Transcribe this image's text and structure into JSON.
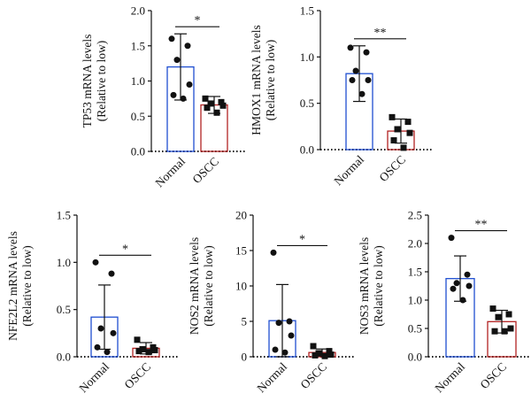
{
  "chart_data": [
    {
      "type": "bar",
      "ylabel_line1": "TP53 mRNA levels",
      "ylabel_line2": "(Relative to low)",
      "categories": [
        "Normal",
        "OSCC"
      ],
      "ylim": [
        0,
        2.0
      ],
      "yticks": [
        "0.0",
        "0.5",
        "1.0",
        "1.5",
        "2.0"
      ],
      "tick_values": [
        0,
        0.5,
        1.0,
        1.5,
        2.0
      ],
      "means": [
        1.2,
        0.66
      ],
      "sd": [
        0.47,
        0.12
      ],
      "points": [
        [
          1.6,
          1.5,
          1.3,
          0.95,
          0.8,
          0.75
        ],
        [
          0.75,
          0.7,
          0.68,
          0.65,
          0.62,
          0.55
        ]
      ],
      "significance": "*",
      "colors": [
        "#1f4fd1",
        "#b22222"
      ]
    },
    {
      "type": "bar",
      "ylabel_line1": "HMOX1 mRNA levels",
      "ylabel_line2": "(Relative to low)",
      "categories": [
        "Normal",
        "OSCC"
      ],
      "ylim": [
        0,
        1.5
      ],
      "yticks": [
        "0.0",
        "0.5",
        "1.0",
        "1.5"
      ],
      "tick_values": [
        0,
        0.5,
        1.0,
        1.5
      ],
      "means": [
        0.82,
        0.2
      ],
      "sd": [
        0.3,
        0.13
      ],
      "points": [
        [
          1.1,
          1.05,
          0.85,
          0.75,
          0.75,
          0.6
        ],
        [
          0.35,
          0.3,
          0.22,
          0.18,
          0.1,
          0.02
        ]
      ],
      "significance": "**",
      "colors": [
        "#1f4fd1",
        "#b22222"
      ]
    },
    {
      "type": "bar",
      "ylabel_line1": "NFE2L2 mRNA levels",
      "ylabel_line2": "(Relative to low)",
      "categories": [
        "Normal",
        "OSCC"
      ],
      "ylim": [
        0,
        1.5
      ],
      "yticks": [
        "0.0",
        "0.5",
        "1.0",
        "1.5"
      ],
      "tick_values": [
        0,
        0.5,
        1.0,
        1.5
      ],
      "means": [
        0.42,
        0.09
      ],
      "sd": [
        0.34,
        0.06
      ],
      "points": [
        [
          1.0,
          0.88,
          0.3,
          0.25,
          0.1,
          0.05
        ],
        [
          0.18,
          0.1,
          0.08,
          0.07,
          0.06,
          0.05
        ]
      ],
      "significance": "*",
      "colors": [
        "#1f4fd1",
        "#b22222"
      ]
    },
    {
      "type": "bar",
      "ylabel_line1": "NOS2 mRNA levels",
      "ylabel_line2": "(Relative to low)",
      "categories": [
        "Normal",
        "OSCC"
      ],
      "ylim": [
        0,
        20
      ],
      "yticks": [
        "0",
        "5",
        "10",
        "15",
        "20"
      ],
      "tick_values": [
        0,
        5,
        10,
        15,
        20
      ],
      "means": [
        5.1,
        0.6
      ],
      "sd": [
        5.1,
        0.5
      ],
      "points": [
        [
          14.7,
          5.0,
          4.8,
          3.0,
          1.0,
          0.6
        ],
        [
          1.5,
          0.8,
          0.5,
          0.3,
          0.2,
          0.1
        ]
      ],
      "significance": "*",
      "colors": [
        "#1f4fd1",
        "#b22222"
      ]
    },
    {
      "type": "bar",
      "ylabel_line1": "NOS3 mRNA levels",
      "ylabel_line2": "(Relative to low)",
      "categories": [
        "Normal",
        "OSCC"
      ],
      "ylim": [
        0,
        2.5
      ],
      "yticks": [
        "0.0",
        "0.5",
        "1.0",
        "1.5",
        "2.0",
        "2.5"
      ],
      "tick_values": [
        0,
        0.5,
        1.0,
        1.5,
        2.0,
        2.5
      ],
      "means": [
        1.38,
        0.62
      ],
      "sd": [
        0.4,
        0.2
      ],
      "points": [
        [
          2.1,
          1.45,
          1.3,
          1.25,
          1.2,
          1.0
        ],
        [
          0.85,
          0.75,
          0.7,
          0.5,
          0.45,
          0.45
        ]
      ],
      "significance": "**",
      "colors": [
        "#1f4fd1",
        "#b22222"
      ]
    }
  ]
}
